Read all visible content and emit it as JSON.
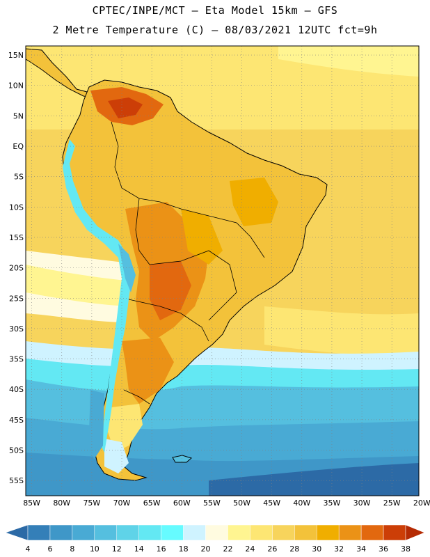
{
  "header": {
    "line1": "CPTEC/INPE/MCT –  Eta Model 15km – GFS",
    "line2": "2 Metre Temperature (C) – 08/03/2021 12UTC fct=9h"
  },
  "map": {
    "lat_labels": [
      "15N",
      "10N",
      "5N",
      "EQ",
      "5S",
      "10S",
      "15S",
      "20S",
      "25S",
      "30S",
      "35S",
      "40S",
      "45S",
      "50S",
      "55S"
    ],
    "lon_labels": [
      "85W",
      "80W",
      "75W",
      "70W",
      "65W",
      "60W",
      "55W",
      "50W",
      "45W",
      "40W",
      "35W",
      "30W",
      "25W",
      "20W"
    ],
    "lat_range": [
      -57.5,
      16.5
    ],
    "lon_range": [
      -86,
      -20.5
    ],
    "variable": "2 Metre Temperature (C)"
  },
  "colorbar": {
    "labels": [
      "4",
      "6",
      "8",
      "10",
      "12",
      "14",
      "16",
      "18",
      "20",
      "22",
      "24",
      "26",
      "28",
      "30",
      "32",
      "34",
      "36",
      "38"
    ],
    "colors": [
      "#2c6aa6",
      "#347fb8",
      "#3f97c8",
      "#49aad4",
      "#55bfdf",
      "#5fd3e8",
      "#63e8f3",
      "#66fbff",
      "#cff3ff",
      "#fffbe0",
      "#fff591",
      "#fde673",
      "#f7d45c",
      "#f3c23a",
      "#f0ae00",
      "#eb9216",
      "#e2680f",
      "#cc3e07",
      "#b52b04"
    ]
  },
  "colors": {
    "land_outline": "#000000",
    "grid": "#808080",
    "frame": "#000000"
  }
}
